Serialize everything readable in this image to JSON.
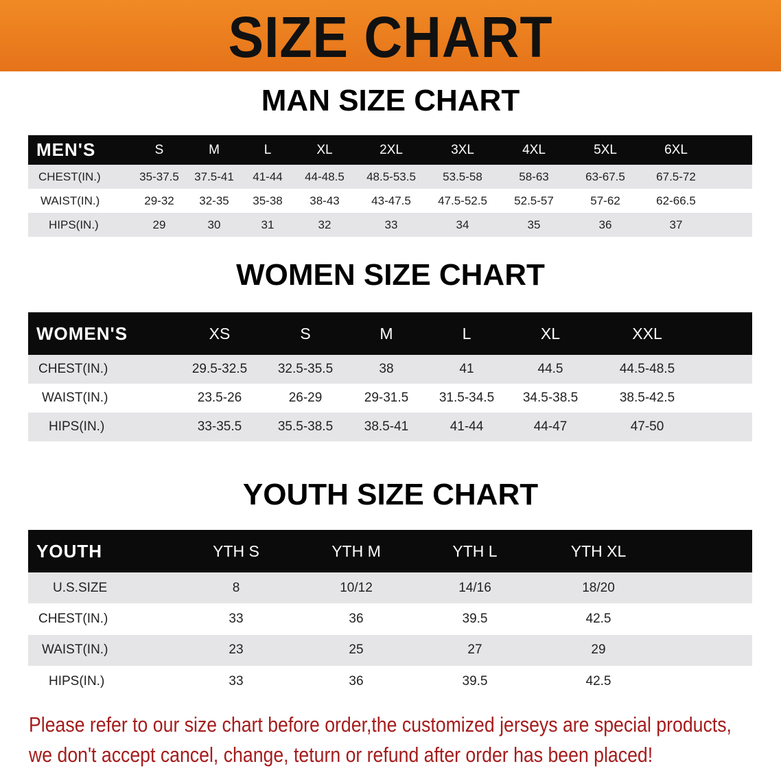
{
  "banner": {
    "title": "SIZE CHART",
    "color": "#ee7f1f"
  },
  "men": {
    "title": "MAN SIZE CHART",
    "header": "MEN'S",
    "sizes": [
      "S",
      "M",
      "L",
      "XL",
      "2XL",
      "3XL",
      "4XL",
      "5XL",
      "6XL"
    ],
    "rows": [
      {
        "label": "CHEST(IN.)",
        "values": [
          "35-37.5",
          "37.5-41",
          "41-44",
          "44-48.5",
          "48.5-53.5",
          "53.5-58",
          "58-63",
          "63-67.5",
          "67.5-72"
        ]
      },
      {
        "label": "WAIST(IN.)",
        "values": [
          "29-32",
          "32-35",
          "35-38",
          "38-43",
          "43-47.5",
          "47.5-52.5",
          "52.5-57",
          "57-62",
          "62-66.5"
        ]
      },
      {
        "label": "HIPS(IN.)",
        "values": [
          "29",
          "30",
          "31",
          "32",
          "33",
          "34",
          "35",
          "36",
          "37"
        ]
      }
    ]
  },
  "women": {
    "title": "WOMEN SIZE CHART",
    "header": "WOMEN'S",
    "sizes": [
      "XS",
      "S",
      "M",
      "L",
      "XL",
      "XXL"
    ],
    "rows": [
      {
        "label": "CHEST(IN.)",
        "values": [
          "29.5-32.5",
          "32.5-35.5",
          "38",
          "41",
          "44.5",
          "44.5-48.5"
        ]
      },
      {
        "label": "WAIST(IN.)",
        "values": [
          "23.5-26",
          "26-29",
          "29-31.5",
          "31.5-34.5",
          "34.5-38.5",
          "38.5-42.5"
        ]
      },
      {
        "label": "HIPS(IN.)",
        "values": [
          "33-35.5",
          "35.5-38.5",
          "38.5-41",
          "41-44",
          "44-47",
          "47-50"
        ]
      }
    ]
  },
  "youth": {
    "title": "YOUTH SIZE CHART",
    "header": "YOUTH",
    "sizes": [
      "YTH S",
      "YTH M",
      "YTH L",
      "YTH XL"
    ],
    "rows": [
      {
        "label": "U.S.SIZE",
        "values": [
          "8",
          "10/12",
          "14/16",
          "18/20"
        ]
      },
      {
        "label": "CHEST(IN.)",
        "values": [
          "33",
          "36",
          "39.5",
          "42.5"
        ]
      },
      {
        "label": "WAIST(IN.)",
        "values": [
          "23",
          "25",
          "27",
          "29"
        ]
      },
      {
        "label": "HIPS(IN.)",
        "values": [
          "33",
          "36",
          "39.5",
          "42.5"
        ]
      }
    ]
  },
  "notice": {
    "line1": "Please refer to our size chart before order,the customized jerseys are special products,",
    "line2": "we don't accept cancel, change, teturn or refund after order has been placed!",
    "color": "#a51c1c"
  }
}
